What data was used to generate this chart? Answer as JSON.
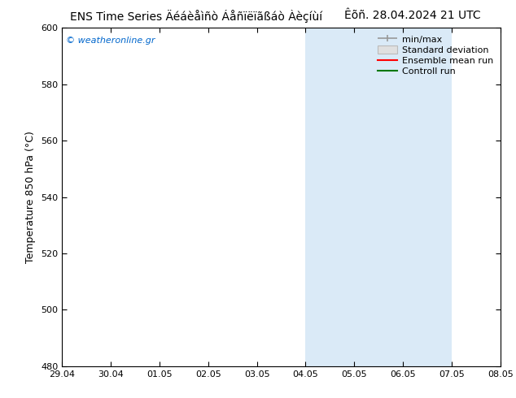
{
  "title_left": "ENS Time Series Äéáèåìñò Áåñïëïãßáò Àèçíùí",
  "title_right": "Êõñ. 28.04.2024 21 UTC",
  "ylabel": "Temperature 850 hPa (°C)",
  "watermark": "© weatheronline.gr",
  "ylim": [
    480,
    600
  ],
  "yticks": [
    480,
    500,
    520,
    540,
    560,
    580,
    600
  ],
  "xtick_labels": [
    "29.04",
    "30.04",
    "01.05",
    "02.05",
    "03.05",
    "04.05",
    "05.05",
    "06.05",
    "07.05",
    "08.05"
  ],
  "xtick_positions": [
    0,
    1,
    2,
    3,
    4,
    5,
    6,
    7,
    8,
    9
  ],
  "xlim": [
    0,
    9
  ],
  "shade_bands": [
    {
      "x_start": 5,
      "x_end": 7,
      "color": "#daeaf7"
    },
    {
      "x_start": 7,
      "x_end": 8,
      "color": "#daeaf7"
    }
  ],
  "legend_entries": [
    {
      "label": "min/max",
      "color": "#999999",
      "type": "minmax"
    },
    {
      "label": "Standard deviation",
      "color": "#bbbbbb",
      "type": "box"
    },
    {
      "label": "Ensemble mean run",
      "color": "#ff0000",
      "type": "line"
    },
    {
      "label": "Controll run",
      "color": "#007700",
      "type": "line"
    }
  ],
  "bg_color": "#ffffff",
  "plot_bg_color": "#ffffff",
  "title_fontsize": 10,
  "tick_fontsize": 8,
  "ylabel_fontsize": 9,
  "watermark_fontsize": 8,
  "watermark_color": "#0066cc",
  "legend_fontsize": 8
}
